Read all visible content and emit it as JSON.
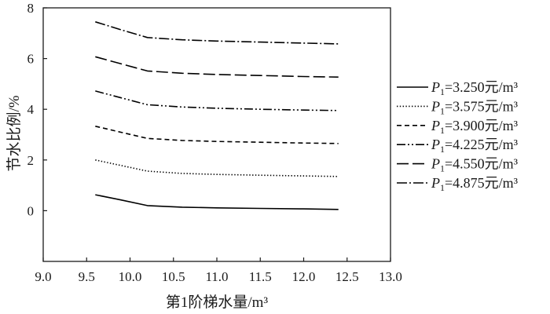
{
  "chart_data": {
    "type": "line",
    "xlabel": "第1阶梯水量/m³",
    "ylabel": "节水比例/%",
    "xlim": [
      9.0,
      13.0
    ],
    "ylim": [
      -2,
      8
    ],
    "x_tick_labels": [
      "9.0",
      "9.5",
      "10.0",
      "10.5",
      "11.0",
      "11.5",
      "12.0",
      "12.5",
      "13.0"
    ],
    "y_tick_labels": [
      "0",
      "2",
      "4",
      "6",
      "8"
    ],
    "grid": false,
    "legend_position": "right-outside",
    "x": [
      9.6,
      9.9,
      10.2,
      10.6,
      11.0,
      11.5,
      12.0,
      12.4
    ],
    "series": [
      {
        "legend": {
          "symbol": "P",
          "subscript": "1",
          "text": "=3.250元/m³"
        },
        "line_style": "solid",
        "color": "#000000",
        "values": [
          0.63,
          0.42,
          0.2,
          0.14,
          0.11,
          0.09,
          0.07,
          0.05
        ]
      },
      {
        "legend": {
          "symbol": "P",
          "subscript": "1",
          "text": "=3.575元/m³"
        },
        "line_style": "dotted",
        "color": "#000000",
        "values": [
          2.0,
          1.78,
          1.56,
          1.47,
          1.43,
          1.4,
          1.37,
          1.35
        ]
      },
      {
        "legend": {
          "symbol": "P",
          "subscript": "1",
          "text": "=3.900元/m³"
        },
        "line_style": "dashed",
        "color": "#000000",
        "values": [
          3.33,
          3.09,
          2.85,
          2.77,
          2.73,
          2.7,
          2.67,
          2.65
        ]
      },
      {
        "legend": {
          "symbol": "P",
          "subscript": "1",
          "text": "=4.225元/m³"
        },
        "line_style": "dash-dot-dot",
        "color": "#000000",
        "values": [
          4.72,
          4.45,
          4.18,
          4.09,
          4.04,
          4.0,
          3.97,
          3.95
        ]
      },
      {
        "legend": {
          "symbol": "P",
          "subscript": "1",
          "text": "=4.550元/m³"
        },
        "line_style": "long-dash",
        "color": "#000000",
        "values": [
          6.07,
          5.79,
          5.51,
          5.42,
          5.37,
          5.33,
          5.29,
          5.27
        ]
      },
      {
        "legend": {
          "symbol": "P",
          "subscript": "1",
          "text": "=4.875元/m³"
        },
        "line_style": "dash-dot",
        "color": "#000000",
        "values": [
          7.45,
          7.13,
          6.83,
          6.74,
          6.69,
          6.65,
          6.61,
          6.58
        ]
      }
    ]
  }
}
